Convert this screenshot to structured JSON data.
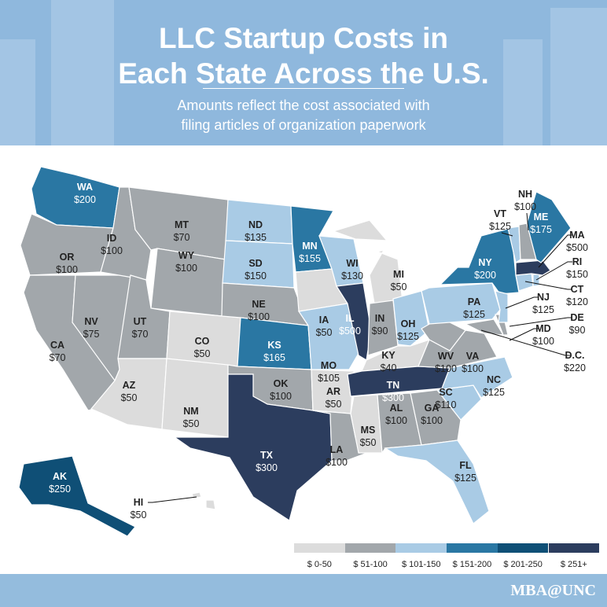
{
  "header": {
    "title_line1": "LLC Startup Costs in",
    "title_line2": "Each State Across the U.S.",
    "subtitle_line1": "Amounts reflect the cost associated with",
    "subtitle_line2": "filing articles of organization paperwork"
  },
  "colors": {
    "header_bg": "#8fb8dd",
    "footer_bg": "#94bcdd",
    "border": "#ffffff"
  },
  "legend": [
    {
      "label": "$ 0-50",
      "color": "#dcdcdc"
    },
    {
      "label": "$ 51-100",
      "color": "#a2a7ab"
    },
    {
      "label": "$ 101-150",
      "color": "#a9cbe5"
    },
    {
      "label": "$ 151-200",
      "color": "#2a77a3"
    },
    {
      "label": "$ 201-250",
      "color": "#0f4f76"
    },
    {
      "label": "$ 251+",
      "color": "#2c3d5e"
    }
  ],
  "states": [
    {
      "abbr": "WA",
      "cost": "$200",
      "tier": 3
    },
    {
      "abbr": "OR",
      "cost": "$100",
      "tier": 1
    },
    {
      "abbr": "CA",
      "cost": "$70",
      "tier": 1
    },
    {
      "abbr": "NV",
      "cost": "$75",
      "tier": 1
    },
    {
      "abbr": "ID",
      "cost": "$100",
      "tier": 1
    },
    {
      "abbr": "MT",
      "cost": "$70",
      "tier": 1
    },
    {
      "abbr": "WY",
      "cost": "$100",
      "tier": 1
    },
    {
      "abbr": "UT",
      "cost": "$70",
      "tier": 1
    },
    {
      "abbr": "AZ",
      "cost": "$50",
      "tier": 0
    },
    {
      "abbr": "CO",
      "cost": "$50",
      "tier": 0
    },
    {
      "abbr": "NM",
      "cost": "$50",
      "tier": 0
    },
    {
      "abbr": "ND",
      "cost": "$135",
      "tier": 2
    },
    {
      "abbr": "SD",
      "cost": "$150",
      "tier": 2
    },
    {
      "abbr": "NE",
      "cost": "$100",
      "tier": 1
    },
    {
      "abbr": "KS",
      "cost": "$165",
      "tier": 3
    },
    {
      "abbr": "OK",
      "cost": "$100",
      "tier": 1
    },
    {
      "abbr": "TX",
      "cost": "$300",
      "tier": 5
    },
    {
      "abbr": "MN",
      "cost": "$155",
      "tier": 3
    },
    {
      "abbr": "IA",
      "cost": "$50",
      "tier": 0
    },
    {
      "abbr": "MO",
      "cost": "$105",
      "tier": 2
    },
    {
      "abbr": "AR",
      "cost": "$50",
      "tier": 0
    },
    {
      "abbr": "LA",
      "cost": "$100",
      "tier": 1
    },
    {
      "abbr": "WI",
      "cost": "$130",
      "tier": 2
    },
    {
      "abbr": "IL",
      "cost": "$500",
      "tier": 5
    },
    {
      "abbr": "MI",
      "cost": "$50",
      "tier": 0
    },
    {
      "abbr": "IN",
      "cost": "$90",
      "tier": 1
    },
    {
      "abbr": "OH",
      "cost": "$125",
      "tier": 2
    },
    {
      "abbr": "KY",
      "cost": "$40",
      "tier": 0
    },
    {
      "abbr": "TN",
      "cost": "$300",
      "tier": 5
    },
    {
      "abbr": "MS",
      "cost": "$50",
      "tier": 0
    },
    {
      "abbr": "AL",
      "cost": "$100",
      "tier": 1
    },
    {
      "abbr": "GA",
      "cost": "$100",
      "tier": 1
    },
    {
      "abbr": "FL",
      "cost": "$125",
      "tier": 2
    },
    {
      "abbr": "SC",
      "cost": "$110",
      "tier": 2
    },
    {
      "abbr": "NC",
      "cost": "$125",
      "tier": 2
    },
    {
      "abbr": "VA",
      "cost": "$100",
      "tier": 1
    },
    {
      "abbr": "WV",
      "cost": "$100",
      "tier": 1
    },
    {
      "abbr": "PA",
      "cost": "$125",
      "tier": 2
    },
    {
      "abbr": "NY",
      "cost": "$200",
      "tier": 3
    },
    {
      "abbr": "MD",
      "cost": "$100",
      "tier": 1
    },
    {
      "abbr": "DE",
      "cost": "$90",
      "tier": 1
    },
    {
      "abbr": "NJ",
      "cost": "$125",
      "tier": 2
    },
    {
      "abbr": "CT",
      "cost": "$120",
      "tier": 2
    },
    {
      "abbr": "RI",
      "cost": "$150",
      "tier": 2
    },
    {
      "abbr": "MA",
      "cost": "$500",
      "tier": 5
    },
    {
      "abbr": "VT",
      "cost": "$125",
      "tier": 2
    },
    {
      "abbr": "NH",
      "cost": "$100",
      "tier": 1
    },
    {
      "abbr": "ME",
      "cost": "$175",
      "tier": 3
    },
    {
      "abbr": "AK",
      "cost": "$250",
      "tier": 4
    },
    {
      "abbr": "HI",
      "cost": "$50",
      "tier": 0
    },
    {
      "abbr": "D.C.",
      "cost": "$220",
      "tier": 4
    }
  ],
  "footer": {
    "logo": "MBA@UNC"
  }
}
